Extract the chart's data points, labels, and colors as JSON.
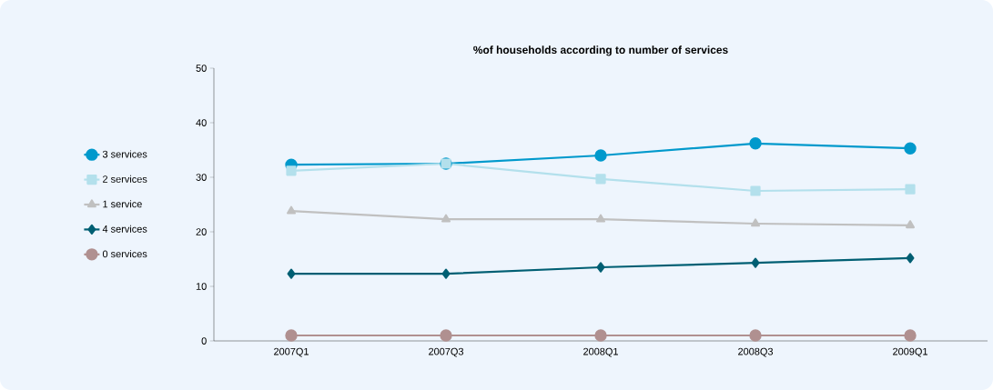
{
  "chart_data": {
    "type": "line",
    "title": "%of households according to number of services",
    "categories": [
      "2007Q1",
      "2007Q3",
      "2008Q1",
      "2008Q3",
      "2009Q1"
    ],
    "series": [
      {
        "name": "3 services",
        "color": "#0099cc",
        "marker": "circle",
        "values": [
          32.3,
          32.5,
          34.0,
          36.2,
          35.3
        ]
      },
      {
        "name": "2 services",
        "color": "#b3e0ec",
        "marker": "square",
        "values": [
          31.2,
          32.5,
          29.7,
          27.5,
          27.8
        ]
      },
      {
        "name": "1 service",
        "color": "#c0c0c0",
        "marker": "triangle",
        "values": [
          23.8,
          22.3,
          22.3,
          21.5,
          21.2
        ]
      },
      {
        "name": "4 services",
        "color": "#005f73",
        "marker": "diamond",
        "values": [
          12.3,
          12.3,
          13.5,
          14.3,
          15.2
        ]
      },
      {
        "name": "0 services",
        "color": "#b09090",
        "marker": "circle",
        "values": [
          1.0,
          1.0,
          1.0,
          1.0,
          1.0
        ]
      }
    ],
    "ylim": [
      0,
      50
    ],
    "yticks": [
      0,
      10,
      20,
      30,
      40,
      50
    ],
    "grid": false,
    "legend": "left"
  }
}
